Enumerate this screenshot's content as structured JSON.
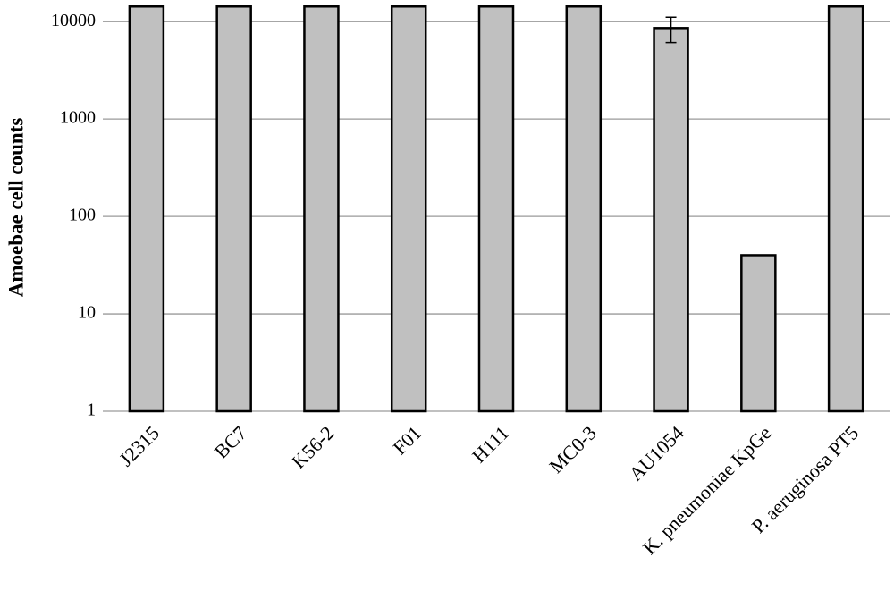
{
  "chart_data": {
    "type": "bar",
    "y_label": "Amoebae cell counts",
    "categories": [
      "J2315",
      "BC7",
      "K56-2",
      "F01",
      "H111",
      "MC0-3",
      "AU1054",
      "K. pneumoniae KpGe",
      "P. aeruginosa PT5"
    ],
    "values": [
      14300,
      14300,
      14300,
      14300,
      14300,
      14300,
      8600,
      40,
      14300
    ],
    "errors": [
      null,
      null,
      null,
      null,
      null,
      null,
      2500,
      null,
      null
    ],
    "color": "#c0c0c0",
    "log_scale": true,
    "ylim": [
      1,
      15000
    ],
    "yticks": [
      1,
      10,
      100,
      1000,
      10000
    ],
    "grid": true
  }
}
